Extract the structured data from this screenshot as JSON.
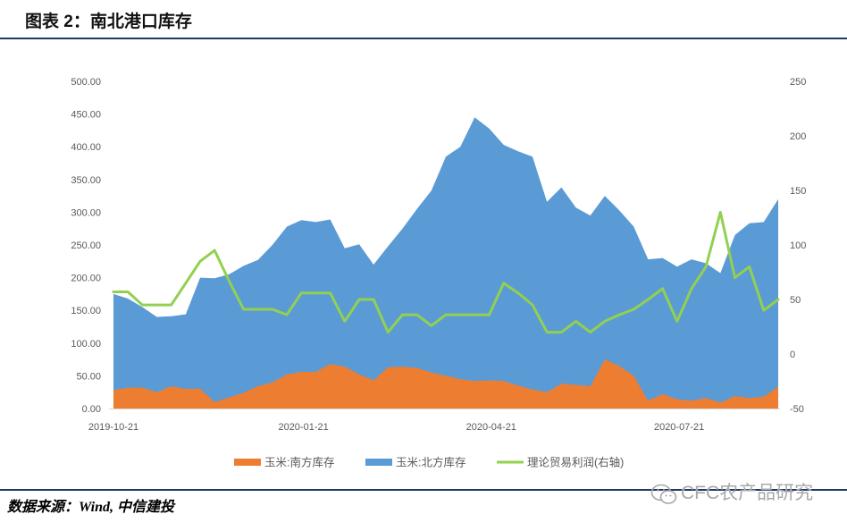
{
  "chart_data": {
    "type": "area",
    "title": "图表 2：南北港口库存",
    "x": [
      "2019-10-21",
      "2019-10-28",
      "2019-11-04",
      "2019-11-11",
      "2019-11-18",
      "2019-11-25",
      "2019-12-02",
      "2019-12-09",
      "2019-12-16",
      "2019-12-23",
      "2019-12-30",
      "2020-01-06",
      "2020-01-13",
      "2020-01-20",
      "2020-01-27",
      "2020-02-03",
      "2020-02-10",
      "2020-02-17",
      "2020-02-24",
      "2020-03-02",
      "2020-03-09",
      "2020-03-16",
      "2020-03-23",
      "2020-03-30",
      "2020-04-06",
      "2020-04-13",
      "2020-04-20",
      "2020-04-27",
      "2020-05-04",
      "2020-05-11",
      "2020-05-18",
      "2020-05-25",
      "2020-06-01",
      "2020-06-08",
      "2020-06-15",
      "2020-06-22",
      "2020-06-29",
      "2020-07-06",
      "2020-07-13",
      "2020-07-20",
      "2020-07-27",
      "2020-08-03",
      "2020-08-10",
      "2020-08-17",
      "2020-08-24",
      "2020-08-31",
      "2020-09-07"
    ],
    "x_ticks": [
      "2019-10-21",
      "2020-01-21",
      "2020-04-21",
      "2020-07-21"
    ],
    "y_left": {
      "range": [
        0,
        500
      ],
      "ticks": [
        "0.00",
        "50.00",
        "100.00",
        "150.00",
        "200.00",
        "250.00",
        "300.00",
        "350.00",
        "400.00",
        "450.00",
        "500.00"
      ]
    },
    "y_right": {
      "range": [
        -50,
        250
      ],
      "ticks": [
        "-50",
        "0",
        "50",
        "100",
        "150",
        "200",
        "250"
      ]
    },
    "grid": false,
    "legend": "bottom",
    "series": [
      {
        "name": "玉米:南方库存",
        "type": "area",
        "axis": "left",
        "color": "#ED7D31",
        "values": [
          28,
          32,
          32,
          25,
          34,
          30,
          30,
          10,
          17,
          24,
          34,
          40,
          52,
          56,
          56,
          68,
          64,
          52,
          43,
          63,
          64,
          62,
          55,
          50,
          45,
          42,
          43,
          42,
          35,
          29,
          25,
          38,
          36,
          34,
          75,
          65,
          50,
          12,
          22,
          14,
          12,
          16,
          9,
          19,
          16,
          18,
          33
        ]
      },
      {
        "name": "玉米:北方库存",
        "type": "area",
        "axis": "left",
        "color": "#5B9BD5",
        "values": [
          175,
          168,
          155,
          140,
          141,
          144,
          200,
          199,
          205,
          218,
          227,
          250,
          278,
          288,
          285,
          289,
          245,
          251,
          220,
          248,
          275,
          305,
          333,
          385,
          400,
          445,
          428,
          403,
          393,
          385,
          316,
          338,
          307,
          295,
          325,
          303,
          278,
          228,
          230,
          217,
          228,
          222,
          207,
          265,
          283,
          285,
          320
        ]
      },
      {
        "name": "理论贸易利润(右轴)",
        "type": "line",
        "axis": "right",
        "color": "#92D050",
        "values": [
          57,
          57,
          45,
          45,
          45,
          65,
          85,
          95,
          67,
          41,
          41,
          41,
          36,
          56,
          56,
          56,
          30,
          50,
          50,
          20,
          36,
          36,
          26,
          36,
          36,
          36,
          36,
          65,
          56,
          45,
          20,
          20,
          30,
          20,
          30,
          36,
          41,
          50,
          60,
          30,
          60,
          80,
          130,
          70,
          80,
          40,
          50
        ]
      }
    ]
  },
  "footer": {
    "source": "数据来源：Wind, 中信建投",
    "watermark": "CFC农产品研究",
    "watermark_icon": "wechat-icon"
  }
}
